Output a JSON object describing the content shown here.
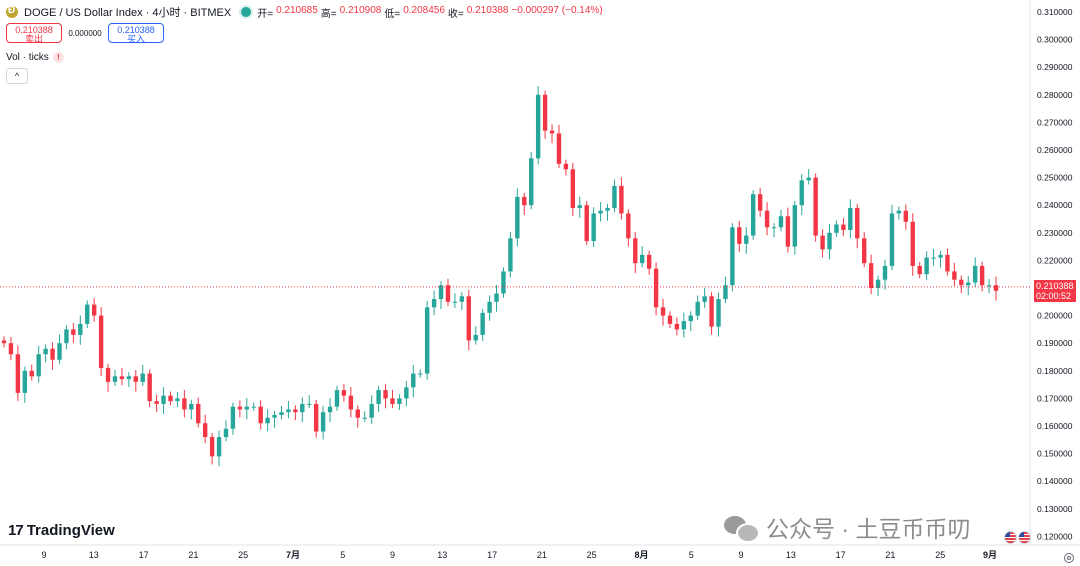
{
  "header": {
    "title": "DOGE / US Dollar Index · 4小时 · BITMEX",
    "ohlc": [
      {
        "label": "开=",
        "value": "0.210685"
      },
      {
        "label": "高=",
        "value": "0.210908"
      },
      {
        "label": "低=",
        "value": "0.208456"
      },
      {
        "label": "收=",
        "value": "0.210388"
      }
    ],
    "change": "−0.000297 (−0.14%)"
  },
  "trade": {
    "sell_price": "0.210388",
    "sell_label": "卖出",
    "spread": "0.000000",
    "buy_price": "0.210388",
    "buy_label": "买入"
  },
  "indicator": {
    "label": "Vol · ticks",
    "warning": "!",
    "collapse": "^"
  },
  "branding": {
    "logo_mark": "17",
    "logo_text": "TradingView"
  },
  "watermark": {
    "text": "公众号 · 土豆币币叨"
  },
  "price_label": {
    "price": "0.210388",
    "countdown": "02:00:52"
  },
  "colors": {
    "up": "#26a69a",
    "down": "#f23645",
    "price_line": "#f23645"
  },
  "chart_data": {
    "type": "candlestick",
    "symbol": "DOGE / US Dollar Index",
    "timeframe": "4小时",
    "exchange": "BITMEX",
    "ylim": [
      0.115,
      0.3125
    ],
    "y_ticks": [
      "0.310000",
      "0.300000",
      "0.290000",
      "0.280000",
      "0.270000",
      "0.260000",
      "0.250000",
      "0.240000",
      "0.230000",
      "0.220000",
      "0.210000",
      "0.200000",
      "0.190000",
      "0.180000",
      "0.170000",
      "0.160000",
      "0.150000",
      "0.140000",
      "0.130000",
      "0.120000"
    ],
    "x_ticks": [
      "9",
      "13",
      "17",
      "21",
      "25",
      "7月",
      "5",
      "9",
      "13",
      "17",
      "21",
      "25",
      "8月",
      "5",
      "9",
      "13",
      "17",
      "21",
      "25",
      "9月"
    ],
    "x_tick_bold": [
      "7月",
      "8月",
      "9月"
    ],
    "last_price": 0.210388,
    "closes": [
      0.19,
      0.186,
      0.172,
      0.18,
      0.178,
      0.186,
      0.188,
      0.184,
      0.19,
      0.195,
      0.193,
      0.197,
      0.204,
      0.2,
      0.181,
      0.176,
      0.178,
      0.177,
      0.178,
      0.176,
      0.179,
      0.169,
      0.168,
      0.171,
      0.169,
      0.17,
      0.166,
      0.168,
      0.161,
      0.156,
      0.149,
      0.156,
      0.159,
      0.167,
      0.166,
      0.167,
      0.167,
      0.161,
      0.163,
      0.164,
      0.165,
      0.166,
      0.165,
      0.168,
      0.168,
      0.158,
      0.165,
      0.167,
      0.173,
      0.171,
      0.166,
      0.163,
      0.163,
      0.168,
      0.173,
      0.17,
      0.168,
      0.17,
      0.174,
      0.179,
      0.179,
      0.203,
      0.206,
      0.211,
      0.205,
      0.205,
      0.207,
      0.191,
      0.193,
      0.201,
      0.205,
      0.208,
      0.216,
      0.228,
      0.243,
      0.24,
      0.257,
      0.28,
      0.267,
      0.266,
      0.255,
      0.253,
      0.239,
      0.24,
      0.227,
      0.237,
      0.238,
      0.239,
      0.247,
      0.237,
      0.228,
      0.219,
      0.222,
      0.217,
      0.203,
      0.2,
      0.197,
      0.195,
      0.198,
      0.2,
      0.205,
      0.207,
      0.196,
      0.206,
      0.211,
      0.232,
      0.226,
      0.229,
      0.244,
      0.238,
      0.232,
      0.232,
      0.236,
      0.225,
      0.24,
      0.249,
      0.25,
      0.229,
      0.224,
      0.23,
      0.233,
      0.231,
      0.239,
      0.228,
      0.219,
      0.21,
      0.213,
      0.218,
      0.237,
      0.238,
      0.234,
      0.218,
      0.215,
      0.221,
      0.221,
      0.222,
      0.216,
      0.213,
      0.211,
      0.212,
      0.218,
      0.211,
      0.211,
      0.209
    ]
  }
}
